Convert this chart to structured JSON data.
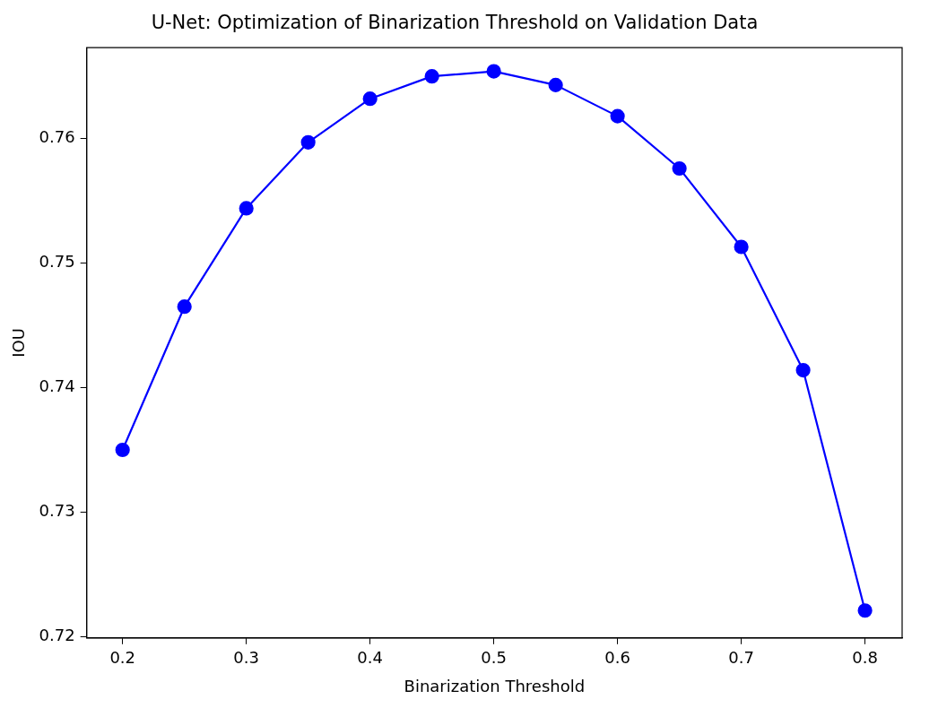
{
  "chart_data": {
    "type": "line",
    "title": "U-Net: Optimization of Binarization Threshold on Validation Data",
    "xlabel": "Binarization Threshold",
    "ylabel": "IOU",
    "x": [
      0.2,
      0.25,
      0.3,
      0.35,
      0.4,
      0.45,
      0.5,
      0.55,
      0.6,
      0.65,
      0.7,
      0.75,
      0.8
    ],
    "series": [
      {
        "color": "#0000ff",
        "values": [
          0.735,
          0.7465,
          0.7544,
          0.7597,
          0.7632,
          0.765,
          0.7654,
          0.7643,
          0.7618,
          0.7576,
          0.7513,
          0.7414,
          0.7221
        ]
      }
    ],
    "xlim": [
      0.171,
      0.83
    ],
    "ylim": [
      0.7199,
      0.7673
    ],
    "xticks": [
      0.2,
      0.3,
      0.4,
      0.5,
      0.6,
      0.7,
      0.8
    ],
    "yticks": [
      0.72,
      0.73,
      0.74,
      0.75,
      0.76
    ],
    "grid": false,
    "legend": false,
    "marker": "circle",
    "line_style": "solid"
  }
}
